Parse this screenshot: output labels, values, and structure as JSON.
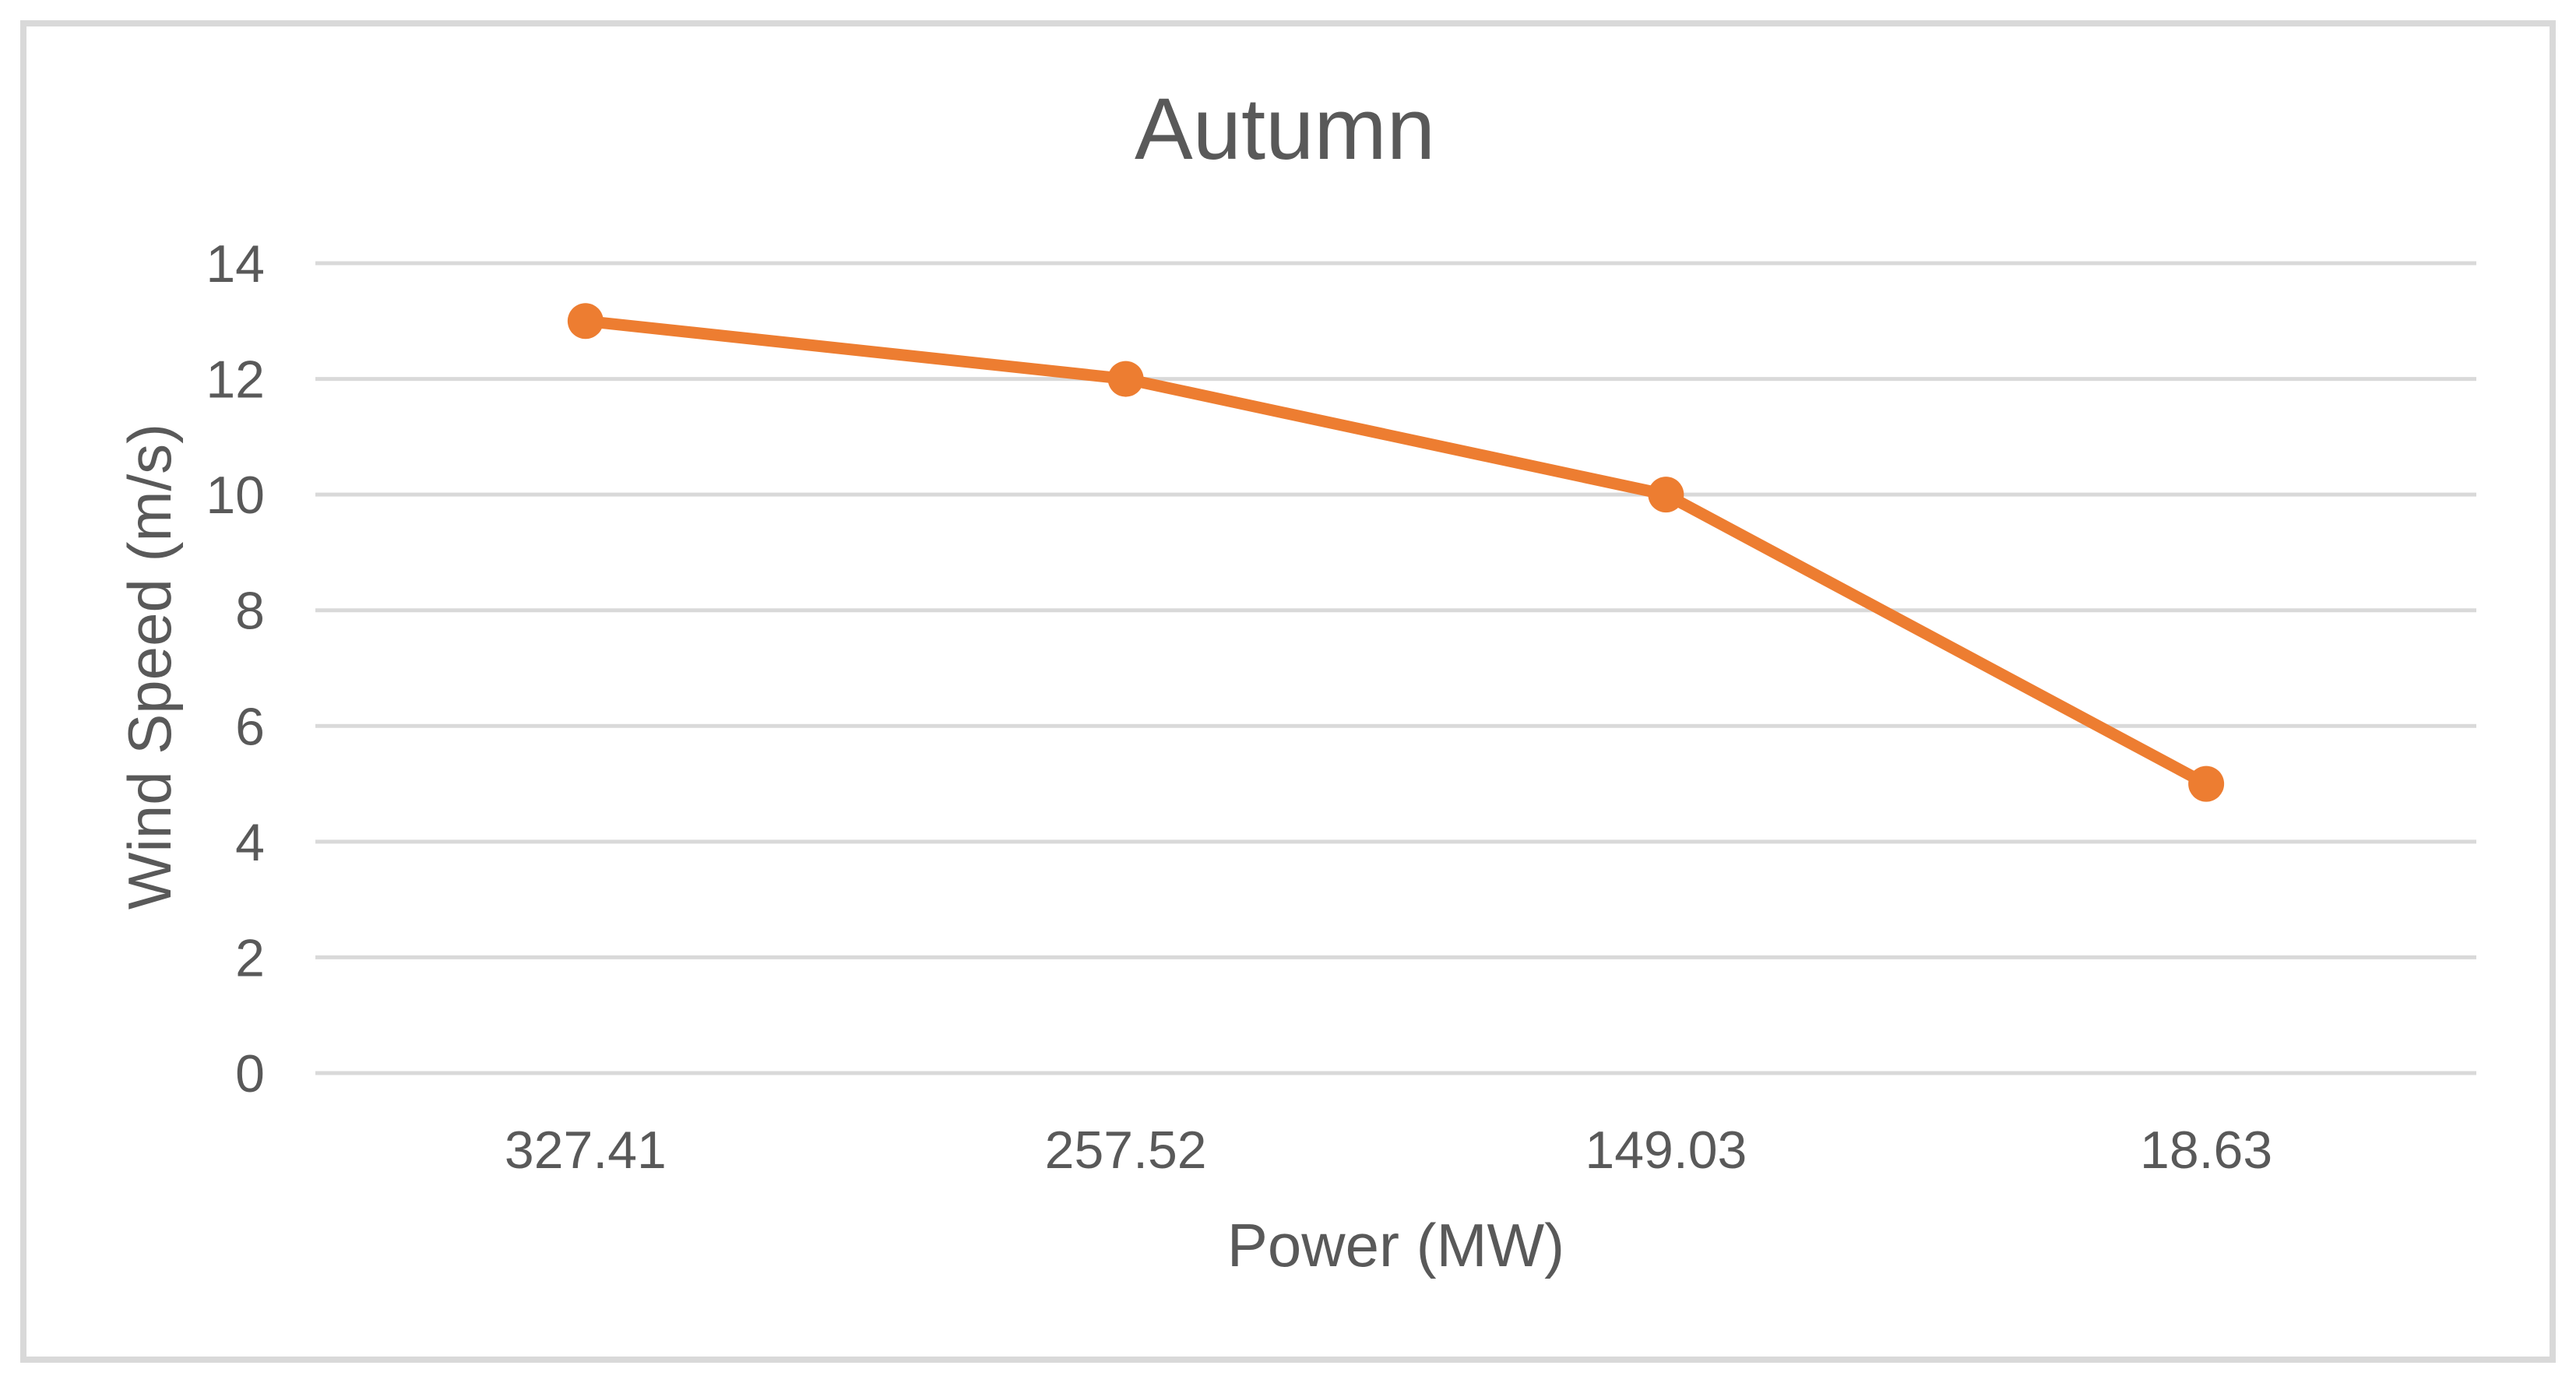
{
  "chart": {
    "title": "Autumn",
    "x_axis_title": "Power (MW)",
    "y_axis_title": "Wind Speed (m/s)"
  },
  "chart_data": {
    "type": "line",
    "title": "Autumn",
    "xlabel": "Power (MW)",
    "ylabel": "Wind Speed (m/s)",
    "categories": [
      "327.41",
      "257.52",
      "149.03",
      "18.63"
    ],
    "values": [
      13,
      12,
      10,
      5
    ],
    "ylim": [
      0,
      14
    ],
    "yticks": [
      0,
      2,
      4,
      6,
      8,
      10,
      12,
      14
    ],
    "grid": "horizontal",
    "legend": "none",
    "marker": "circle",
    "colors": {
      "line": "#ED7D31",
      "marker": "#ED7D31",
      "gridline": "#D9D9D9",
      "text": "#595959",
      "border": "#D9D9D9",
      "background": "#FFFFFF"
    }
  }
}
